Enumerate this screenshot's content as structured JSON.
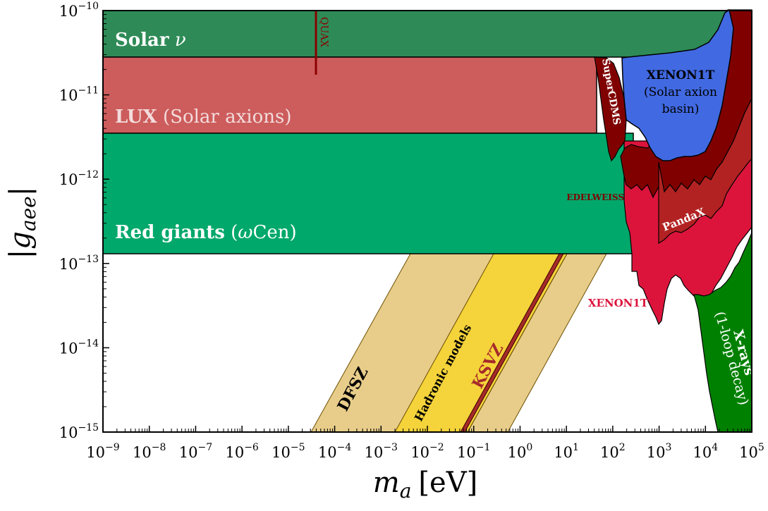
{
  "chart_data": {
    "type": "area",
    "title": "",
    "xlabel": {
      "base": "m",
      "sub": "a",
      "unit": "[eV]"
    },
    "ylabel": {
      "base": "|g",
      "sub": "aee",
      "close": "|"
    },
    "xscale": "log",
    "yscale": "log",
    "xlim_exp": [
      -9,
      5
    ],
    "ylim_exp": [
      -15,
      -10
    ],
    "x_tick_exponents": [
      "-9",
      "-8",
      "-7",
      "-6",
      "-5",
      "-4",
      "-3",
      "-2",
      "-1",
      "0",
      "1",
      "2",
      "3",
      "4",
      "5"
    ],
    "y_tick_exponents": [
      "-15",
      "-14",
      "-13",
      "-12",
      "-11",
      "-10"
    ],
    "tick_base": "10",
    "colors": {
      "solar": "#2e8b57",
      "lux": "#cd5c5c",
      "redgiants": "#00a86b",
      "quax": "#8b0000",
      "supercdms": "#800000",
      "xenon1t_basin": "#4169e1",
      "edelweiss": "#800000",
      "pandax": "#b22222",
      "xenon1t_dm": "#dc143c",
      "xrays": "#008000",
      "dfsz_band": "#e8cd8a",
      "hadronic_band": "#f5d33a",
      "ksvz_line": "#a52a2a"
    },
    "regions": [
      {
        "name": "Solar ν",
        "kind": "exclusion",
        "g_min": 2.8e-11,
        "g_max": 1e-10,
        "ma_max": 100000.0
      },
      {
        "name": "LUX (Solar axions)",
        "kind": "exclusion",
        "g_min": 3.5e-12,
        "g_max": 2.8e-11,
        "ma_max": 100.0
      },
      {
        "name": "Red giants (ωCen)",
        "kind": "exclusion",
        "g_min": 1.3e-13,
        "g_max": 3.5e-12,
        "ma_max": 300.0
      },
      {
        "name": "QUAX",
        "kind": "line",
        "ma": 4.3e-05,
        "g_min": 1.7e-11,
        "g_max": 1e-10
      },
      {
        "name": "SuperCDMS",
        "kind": "exclusion",
        "ma_range": [
          40,
          300
        ]
      },
      {
        "name": "XENON1T (Solar axion basin)",
        "kind": "exclusion",
        "ma_range": [
          300,
          6000
        ]
      },
      {
        "name": "EDELWEISS",
        "kind": "exclusion",
        "ma_range": [
          200,
          100000.0
        ]
      },
      {
        "name": "PandaX",
        "kind": "exclusion",
        "ma_range": [
          1000,
          10000.0
        ]
      },
      {
        "name": "XENON1T",
        "kind": "exclusion",
        "ma_range": [
          200,
          100000.0
        ]
      },
      {
        "name": "X-rays (1-loop decay)",
        "kind": "exclusion",
        "ma_range": [
          10000.0,
          100000.0
        ]
      }
    ],
    "bands": [
      {
        "name": "DFSZ",
        "lower_edge": [
          [
            3.5e-05,
            1e-15
          ],
          [
            0.55,
            1e-13
          ]
        ],
        "upper_edge": [
          [
            0.5,
            1e-15
          ],
          [
            50.0,
            1e-13
          ]
        ]
      },
      {
        "name": "Hadronic models",
        "lower_edge": [
          [
            0.0025,
            1e-15
          ],
          [
            3.5,
            1e-13
          ]
        ],
        "upper_edge": [
          [
            0.06,
            1e-15
          ],
          [
            10.0,
            1e-13
          ]
        ]
      },
      {
        "name": "KSVZ",
        "line": [
          [
            0.05,
            1e-15
          ],
          [
            9,
            1e-13
          ]
        ]
      }
    ],
    "labels": {
      "solar_bold": "Solar",
      "solar_nu": "ν",
      "lux_bold": "LUX",
      "lux_rest": "(Solar axions)",
      "rg_bold": "Red giants",
      "rg_rest_pre": "(",
      "rg_omega": "ω",
      "rg_rest_post": "Cen)",
      "quax": "QUAX",
      "supercdms": "SuperCDMS",
      "xenon_basin_1": "XENON1T",
      "xenon_basin_2": "(Solar axion",
      "xenon_basin_3": "basin)",
      "edelweiss": "EDELWEISS",
      "pandax": "PandaX",
      "xenon1t": "XENON1T",
      "xrays_1": "X-rays",
      "xrays_2": "(1-loop decay)",
      "dfsz": "DFSZ",
      "hadronic": "Hadronic models",
      "ksvz": "KSVZ"
    }
  }
}
